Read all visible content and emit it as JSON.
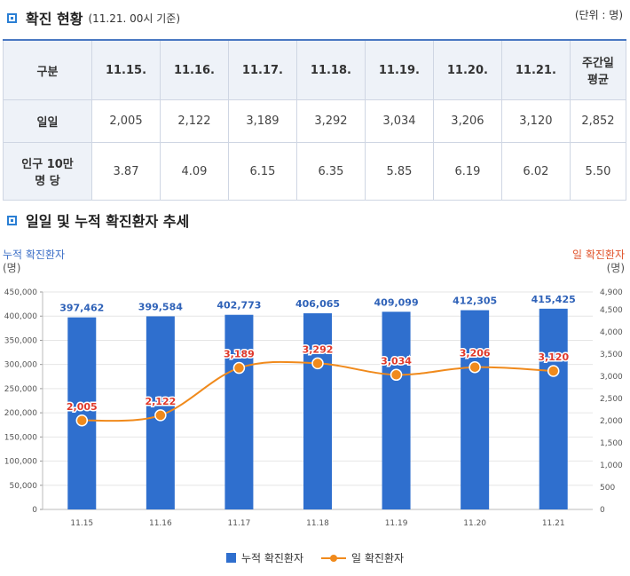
{
  "section1": {
    "title": "확진 현황",
    "subtitle": "(11.21. 00시 기준)",
    "unit": "(단위 : 명)"
  },
  "table": {
    "header": [
      "구분",
      "11.15.",
      "11.16.",
      "11.17.",
      "11.18.",
      "11.19.",
      "11.20.",
      "11.21.",
      "주간일\n평균"
    ],
    "rows": [
      {
        "label": "일일",
        "values": [
          "2,005",
          "2,122",
          "3,189",
          "3,292",
          "3,034",
          "3,206",
          "3,120",
          "2,852"
        ]
      },
      {
        "label": "인구 10만\n명 당",
        "values": [
          "3.87",
          "4.09",
          "6.15",
          "6.35",
          "5.85",
          "6.19",
          "6.02",
          "5.50"
        ]
      }
    ]
  },
  "section2": {
    "title": "일일 및 누적 확진환자 추세"
  },
  "chart_data": {
    "type": "bar+line",
    "categories": [
      "11.15",
      "11.16",
      "11.17",
      "11.18",
      "11.19",
      "11.20",
      "11.21"
    ],
    "series": [
      {
        "name": "누적 확진환자",
        "type": "bar",
        "axis": "left",
        "color": "#2f6fce",
        "values": [
          397462,
          399584,
          402773,
          406065,
          409099,
          412305,
          415425
        ],
        "labels": [
          "397,462",
          "399,584",
          "402,773",
          "406,065",
          "409,099",
          "412,305",
          "415,425"
        ]
      },
      {
        "name": "일 확진환자",
        "type": "line",
        "axis": "right",
        "color": "#f08a1c",
        "values": [
          2005,
          2122,
          3189,
          3292,
          3034,
          3206,
          3120
        ],
        "labels": [
          "2,005",
          "2,122",
          "3,189",
          "3,292",
          "3,034",
          "3,206",
          "3,120"
        ]
      }
    ],
    "y_left": {
      "label": "누적 확진환자",
      "unit": "(명)",
      "min": 0,
      "max": 450000,
      "ticks": [
        "0",
        "50,000",
        "100,000",
        "150,000",
        "200,000",
        "250,000",
        "300,000",
        "350,000",
        "400,000",
        "450,000"
      ]
    },
    "y_right": {
      "label": "일 확진환자",
      "unit": "(명)",
      "min": 0,
      "max": 4900,
      "ticks": [
        "0",
        "500",
        "1,000",
        "1,500",
        "2,000",
        "2,500",
        "3,000",
        "3,500",
        "4,000",
        "4,500",
        "4,900"
      ]
    },
    "grid": true,
    "legend_position": "bottom-center"
  }
}
